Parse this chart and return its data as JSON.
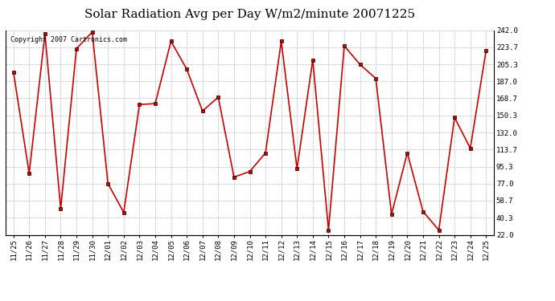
{
  "title": "Solar Radiation Avg per Day W/m2/minute 20071225",
  "copyright_text": "Copyright 2007 Cartronics.com",
  "labels": [
    "11/25",
    "11/26",
    "11/27",
    "11/28",
    "11/29",
    "11/30",
    "12/01",
    "12/02",
    "12/03",
    "12/04",
    "12/05",
    "12/06",
    "12/07",
    "12/08",
    "12/09",
    "12/10",
    "12/11",
    "12/12",
    "12/13",
    "12/14",
    "12/15",
    "12/16",
    "12/17",
    "12/18",
    "12/19",
    "12/20",
    "12/21",
    "12/22",
    "12/23",
    "12/24",
    "12/25"
  ],
  "values": [
    197,
    88,
    238,
    50,
    222,
    240,
    77,
    46,
    162,
    163,
    230,
    200,
    155,
    170,
    84,
    90,
    110,
    230,
    93,
    210,
    27,
    225,
    205,
    190,
    44,
    110,
    47,
    27,
    148,
    115,
    220
  ],
  "line_color": "#cc0000",
  "marker_color": "#cc0000",
  "bg_color": "#ffffff",
  "grid_color": "#bbbbbb",
  "ytick_labels": [
    "22.0",
    "40.3",
    "58.7",
    "77.0",
    "95.3",
    "113.7",
    "132.0",
    "150.3",
    "168.7",
    "187.0",
    "205.3",
    "223.7",
    "242.0"
  ],
  "ytick_values": [
    22.0,
    40.3,
    58.7,
    77.0,
    95.3,
    113.7,
    132.0,
    150.3,
    168.7,
    187.0,
    205.3,
    223.7,
    242.0
  ],
  "ymin": 22.0,
  "ymax": 242.0,
  "title_fontsize": 11,
  "tick_fontsize": 6.5,
  "copyright_fontsize": 6
}
